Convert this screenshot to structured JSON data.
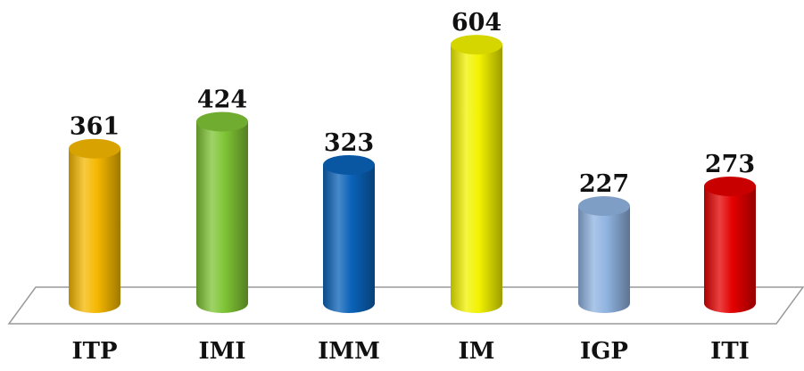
{
  "chart_data": {
    "type": "bar",
    "style": "3d-cylinder",
    "categories": [
      "ITP",
      "IMI",
      "IMM",
      "IM",
      "IGP",
      "ITI"
    ],
    "values": [
      361,
      424,
      323,
      604,
      227,
      273
    ],
    "colors": [
      "#f5b800",
      "#7fc435",
      "#0a62b8",
      "#f2f200",
      "#8fb3e0",
      "#e40000"
    ],
    "data_labels": [
      "361",
      "424",
      "323",
      "604",
      "227",
      "273"
    ],
    "title": "",
    "xlabel": "",
    "ylabel": "",
    "grid": false,
    "legend": "none",
    "ylim": [
      0,
      650
    ]
  }
}
